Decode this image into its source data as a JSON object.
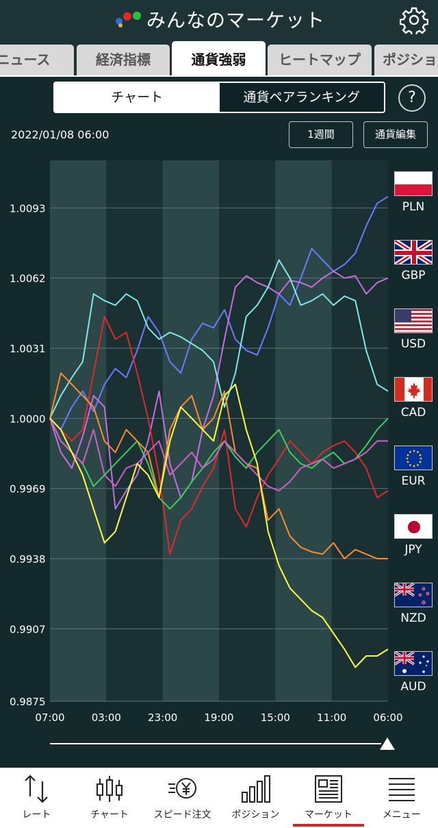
{
  "header": {
    "title": "みんなのマーケット",
    "logo_icon": "dots-logo-icon",
    "settings_icon": "gear-icon"
  },
  "tabs": [
    {
      "label": "ニュース"
    },
    {
      "label": "経済指標"
    },
    {
      "label": "通貨強弱",
      "active": true
    },
    {
      "label": "ヒートマップ"
    },
    {
      "label": "ポジショ"
    }
  ],
  "segment": {
    "chart": "チャート",
    "ranking": "通貨ペアランキング",
    "help": "?"
  },
  "datetime": "2022/01/08 06:00",
  "buttons": {
    "period": "1週間",
    "edit": "通貨編集"
  },
  "chart_data": {
    "type": "line",
    "y_ticks": [
      "1.0093",
      "1.0062",
      "1.0031",
      "1.0000",
      "0.9969",
      "0.9938",
      "0.9907",
      "0.9875"
    ],
    "x_ticks": [
      "07:00",
      "03:00",
      "23:00",
      "19:00",
      "15:00",
      "11:00",
      "06:00"
    ],
    "ylim": [
      0.9875,
      1.0114
    ],
    "series": [
      {
        "name": "PLN",
        "color": "#6a7bff",
        "values": [
          1.0,
          0.9995,
          1.0005,
          1.0012,
          1.0003,
          1.0015,
          1.0022,
          1.0018,
          1.003,
          1.0045,
          1.0038,
          1.0025,
          1.002,
          1.0035,
          1.0042,
          1.004,
          1.0048,
          1.0035,
          1.003,
          1.0028,
          1.004,
          1.0055,
          1.005,
          1.0062,
          1.0075,
          1.007,
          1.0065,
          1.0068,
          1.0073,
          1.0085,
          1.0095,
          1.0098
        ]
      },
      {
        "name": "GBP",
        "color": "#c86ee0",
        "values": [
          1.0,
          0.9985,
          0.9978,
          0.9992,
          1.001,
          1.0005,
          0.996,
          0.9968,
          0.9975,
          0.999,
          1.0012,
          0.998,
          0.9965,
          0.9972,
          0.9995,
          1.001,
          1.0035,
          1.0058,
          1.0063,
          1.006,
          1.0058,
          1.0055,
          1.0061,
          1.006,
          1.0058,
          1.0062,
          1.0065,
          1.0062,
          1.0063,
          1.0055,
          1.006,
          1.0062
        ]
      },
      {
        "name": "USD",
        "color": "#7fe8ea",
        "values": [
          1.0,
          1.001,
          1.0018,
          1.0025,
          1.0055,
          1.0052,
          1.005,
          1.0055,
          1.0052,
          1.004,
          1.0035,
          1.0038,
          1.0036,
          1.0033,
          1.003,
          1.0025,
          1.0005,
          1.002,
          1.0045,
          1.005,
          1.0058,
          1.007,
          1.0062,
          1.005,
          1.0052,
          1.0055,
          1.005,
          1.0054,
          1.0052,
          1.003,
          1.0015,
          1.0012
        ]
      },
      {
        "name": "CAD",
        "color": "#e02a2a",
        "values": [
          1.0,
          0.9995,
          0.999,
          0.9995,
          1.002,
          1.0045,
          1.0035,
          1.0038,
          1.002,
          1.0,
          0.9975,
          0.994,
          0.9955,
          0.996,
          0.997,
          0.9978,
          0.9995,
          0.996,
          0.9952,
          0.9965,
          0.9975,
          0.9982,
          0.999,
          0.9985,
          0.998,
          0.9985,
          0.9988,
          0.999,
          0.9985,
          0.9978,
          0.9965,
          0.9968
        ]
      },
      {
        "name": "EUR",
        "color": "#3ccf5a",
        "values": [
          1.0,
          0.999,
          0.9985,
          0.998,
          0.997,
          0.9975,
          0.998,
          0.9985,
          0.999,
          0.998,
          0.9965,
          0.996,
          0.9965,
          0.9972,
          0.9978,
          0.9985,
          0.999,
          0.9983,
          0.9978,
          0.9985,
          0.999,
          0.9995,
          0.9985,
          0.998,
          0.9978,
          0.9982,
          0.9985,
          0.998,
          0.9982,
          0.9988,
          0.9995,
          1.0
        ]
      },
      {
        "name": "JPY",
        "color": "#ff8c2a",
        "values": [
          1.0,
          1.002,
          1.0015,
          1.001,
          1.0005,
          0.999,
          0.9985,
          0.9995,
          0.999,
          0.9985,
          0.9965,
          0.9995,
          1.0005,
          1.001,
          0.9995,
          1.0,
          1.0012,
          0.9985,
          0.998,
          0.9978,
          0.9955,
          0.996,
          0.9948,
          0.9943,
          0.9941,
          0.994,
          0.9945,
          0.9938,
          0.9942,
          0.994,
          0.9938,
          0.9938
        ]
      },
      {
        "name": "NZD",
        "color": "#d060c8",
        "values": [
          1.0,
          0.999,
          0.9985,
          0.998,
          0.9995,
          0.9975,
          0.997,
          0.9978,
          0.998,
          0.9985,
          0.999,
          0.9975,
          0.998,
          0.9985,
          0.9978,
          0.9982,
          0.999,
          0.9985,
          0.998,
          0.9975,
          0.997,
          0.9968,
          0.9972,
          0.9978,
          0.998,
          0.9982,
          0.9978,
          0.998,
          0.9982,
          0.9985,
          0.999,
          0.999
        ]
      },
      {
        "name": "AUD",
        "color": "#ffff3a",
        "values": [
          1.0,
          0.9995,
          0.9985,
          0.9975,
          0.996,
          0.9945,
          0.995,
          0.9965,
          0.998,
          0.9975,
          0.9965,
          0.999,
          1.0005,
          1.0,
          0.9995,
          0.999,
          1.001,
          1.0015,
          0.9995,
          0.998,
          0.995,
          0.9935,
          0.9925,
          0.992,
          0.9915,
          0.9912,
          0.9905,
          0.9898,
          0.989,
          0.9895,
          0.9895,
          0.9898
        ]
      }
    ]
  },
  "legend": [
    {
      "label": "PLN",
      "icon": "poland-flag-icon"
    },
    {
      "label": "GBP",
      "icon": "uk-flag-icon"
    },
    {
      "label": "USD",
      "icon": "us-flag-icon"
    },
    {
      "label": "CAD",
      "icon": "canada-flag-icon"
    },
    {
      "label": "EUR",
      "icon": "eu-flag-icon"
    },
    {
      "label": "JPY",
      "icon": "japan-flag-icon"
    },
    {
      "label": "NZD",
      "icon": "new-zealand-flag-icon"
    },
    {
      "label": "AUD",
      "icon": "australia-flag-icon"
    }
  ],
  "nav": [
    {
      "label": "レート",
      "icon": "rate-arrows-icon"
    },
    {
      "label": "チャート",
      "icon": "candlestick-icon"
    },
    {
      "label": "スピード注文",
      "icon": "speed-order-icon"
    },
    {
      "label": "ポジション",
      "icon": "bar-chart-icon"
    },
    {
      "label": "マーケット",
      "icon": "newspaper-icon",
      "active": true
    },
    {
      "label": "メニュー",
      "icon": "menu-icon"
    }
  ]
}
